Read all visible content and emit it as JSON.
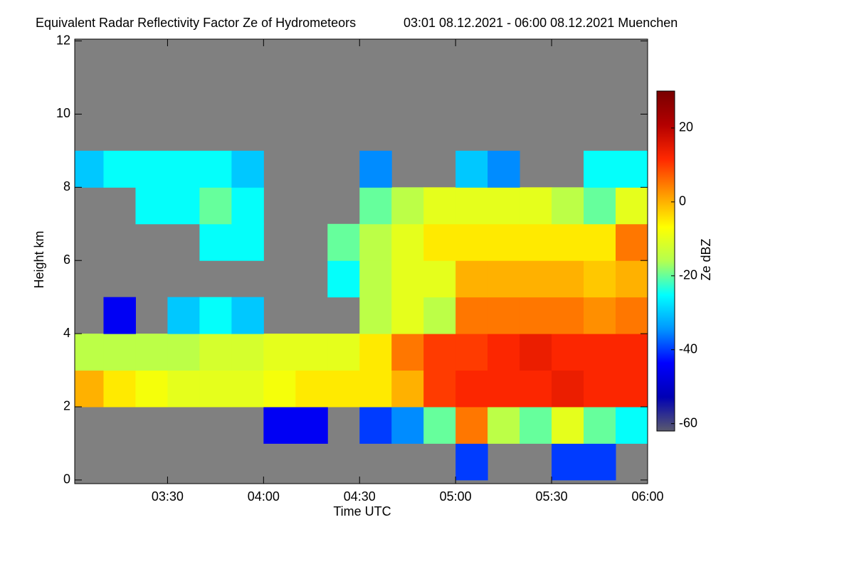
{
  "chart_data": {
    "type": "heatmap",
    "title": "Equivalent Radar Reflectivity Factor Ze of Hydrometeors",
    "subtitle": "03:01 08.12.2021 - 06:00 08.12.2021 Muenchen",
    "x_label": "Time UTC",
    "y_label": "Height km",
    "colorbar_label": "Ze dBZ",
    "x_bins": [
      181,
      190,
      200,
      210,
      220,
      230,
      240,
      250,
      260,
      270,
      280,
      290,
      300,
      310,
      320,
      330,
      340,
      350,
      360
    ],
    "y_bins": [
      0,
      1,
      2,
      3,
      4,
      5,
      6,
      7,
      8,
      9,
      10,
      11,
      12
    ],
    "z": [
      [
        null,
        null,
        null,
        null,
        null,
        null,
        null,
        null,
        null,
        null,
        null,
        null,
        -40,
        null,
        null,
        -40,
        -40,
        null
      ],
      [
        null,
        null,
        null,
        null,
        null,
        null,
        -45,
        -45,
        null,
        -40,
        -35,
        -20,
        5,
        -15,
        -20,
        -10,
        -20,
        -25
      ],
      [
        0,
        -5,
        -8,
        -10,
        -10,
        -10,
        -8,
        -5,
        -5,
        -5,
        0,
        10,
        12,
        12,
        12,
        14,
        12,
        12
      ],
      [
        -15,
        -15,
        -15,
        -15,
        -12,
        -12,
        -10,
        -10,
        -10,
        -5,
        5,
        10,
        10,
        12,
        14,
        12,
        12,
        12
      ],
      [
        null,
        -45,
        null,
        -30,
        -25,
        -30,
        null,
        null,
        null,
        -15,
        -10,
        -15,
        5,
        5,
        5,
        5,
        3,
        5
      ],
      [
        null,
        null,
        null,
        null,
        null,
        null,
        null,
        null,
        -25,
        -15,
        -10,
        -10,
        0,
        0,
        0,
        0,
        -2,
        0
      ],
      [
        null,
        null,
        null,
        null,
        -25,
        -25,
        null,
        null,
        -20,
        -15,
        -10,
        -5,
        -5,
        -5,
        -5,
        -5,
        -5,
        5
      ],
      [
        null,
        null,
        -25,
        -25,
        -20,
        -25,
        null,
        null,
        null,
        -20,
        -15,
        -10,
        -10,
        -10,
        -10,
        -15,
        -20,
        -10
      ],
      [
        -30,
        -25,
        -25,
        -25,
        -25,
        -30,
        null,
        null,
        null,
        -35,
        null,
        null,
        -30,
        -35,
        null,
        null,
        -25,
        -25
      ],
      [
        null,
        null,
        null,
        null,
        null,
        null,
        null,
        null,
        null,
        null,
        null,
        null,
        null,
        null,
        null,
        null,
        null,
        null
      ],
      [
        null,
        null,
        null,
        null,
        null,
        null,
        null,
        null,
        null,
        null,
        null,
        null,
        null,
        null,
        null,
        null,
        null,
        null
      ],
      [
        null,
        null,
        null,
        null,
        null,
        null,
        null,
        null,
        null,
        null,
        null,
        null,
        null,
        null,
        null,
        null,
        null,
        null
      ]
    ],
    "xlim": [
      181,
      360
    ],
    "xticks": [
      {
        "value": 210,
        "label": "03:30"
      },
      {
        "value": 240,
        "label": "04:00"
      },
      {
        "value": 270,
        "label": "04:30"
      },
      {
        "value": 300,
        "label": "05:00"
      },
      {
        "value": 330,
        "label": "05:30"
      },
      {
        "value": 360,
        "label": "06:00"
      }
    ],
    "ylim": [
      -0.1,
      12.05
    ],
    "yticks": [
      0,
      2,
      4,
      6,
      8,
      10,
      12
    ],
    "zlim": [
      -62,
      30
    ],
    "zticks": [
      -60,
      -40,
      -20,
      0,
      20
    ],
    "colormap": [
      "#5a5a6e",
      "#0000b4",
      "#0000ff",
      "#0096ff",
      "#00ffff",
      "#b4ff50",
      "#ffff00",
      "#ff9600",
      "#ff2800",
      "#b40000",
      "#780000"
    ],
    "background": "#808080"
  }
}
